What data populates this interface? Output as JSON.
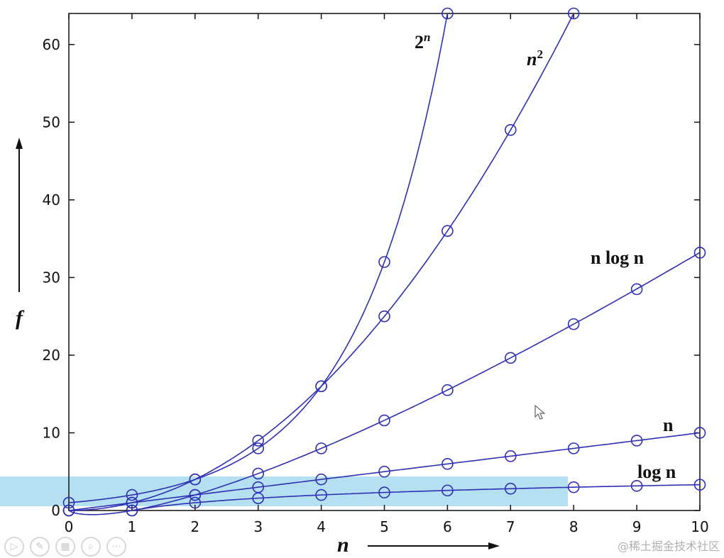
{
  "chart_data": {
    "type": "line",
    "x": [
      0,
      1,
      2,
      3,
      4,
      5,
      6,
      7,
      8,
      9,
      10
    ],
    "xlabel": "n",
    "ylabel": "f",
    "xlim": [
      0,
      10
    ],
    "ylim": [
      0,
      64
    ],
    "xticks": [
      "0",
      "1",
      "2",
      "3",
      "4",
      "5",
      "6",
      "7",
      "8",
      "9",
      "10"
    ],
    "yticks": [
      "0",
      "10",
      "20",
      "30",
      "40",
      "50",
      "60"
    ],
    "marker": "circle",
    "line_color": "#2f2fb4",
    "series": [
      {
        "name": "2",
        "name_sup": "n",
        "x": [
          0,
          1,
          2,
          3,
          4,
          5,
          6
        ],
        "values": [
          1,
          2,
          4,
          8,
          16,
          32,
          64
        ]
      },
      {
        "name": "n",
        "name_sup": "2",
        "x": [
          0,
          1,
          2,
          3,
          4,
          5,
          6,
          7,
          8
        ],
        "values": [
          0,
          1,
          4,
          9,
          16,
          25,
          36,
          49,
          64
        ]
      },
      {
        "name": "n log n",
        "x": [
          0,
          1,
          2,
          3,
          4,
          5,
          6,
          7,
          8,
          9,
          10
        ],
        "values": [
          0,
          0,
          2,
          4.75,
          8,
          11.6,
          15.5,
          19.65,
          24,
          28.5,
          33.2
        ]
      },
      {
        "name": "n",
        "x": [
          0,
          1,
          2,
          3,
          4,
          5,
          6,
          7,
          8,
          9,
          10
        ],
        "values": [
          0,
          1,
          2,
          3,
          4,
          5,
          6,
          7,
          8,
          9,
          10
        ]
      },
      {
        "name": "log n",
        "x": [
          1,
          2,
          3,
          4,
          5,
          6,
          7,
          8,
          9,
          10
        ],
        "values": [
          0,
          1,
          1.58,
          2,
          2.32,
          2.58,
          2.81,
          3,
          3.17,
          3.32
        ]
      }
    ]
  },
  "watermark": "@稀土掘金技术社区",
  "toolbar": {
    "buttons": [
      {
        "name": "play-icon",
        "glyph": "▷"
      },
      {
        "name": "pen-icon",
        "glyph": "✎"
      },
      {
        "name": "slides-icon",
        "glyph": "▦"
      },
      {
        "name": "zoom-icon",
        "glyph": "⌕"
      },
      {
        "name": "more-icon",
        "glyph": "⋯"
      }
    ]
  }
}
